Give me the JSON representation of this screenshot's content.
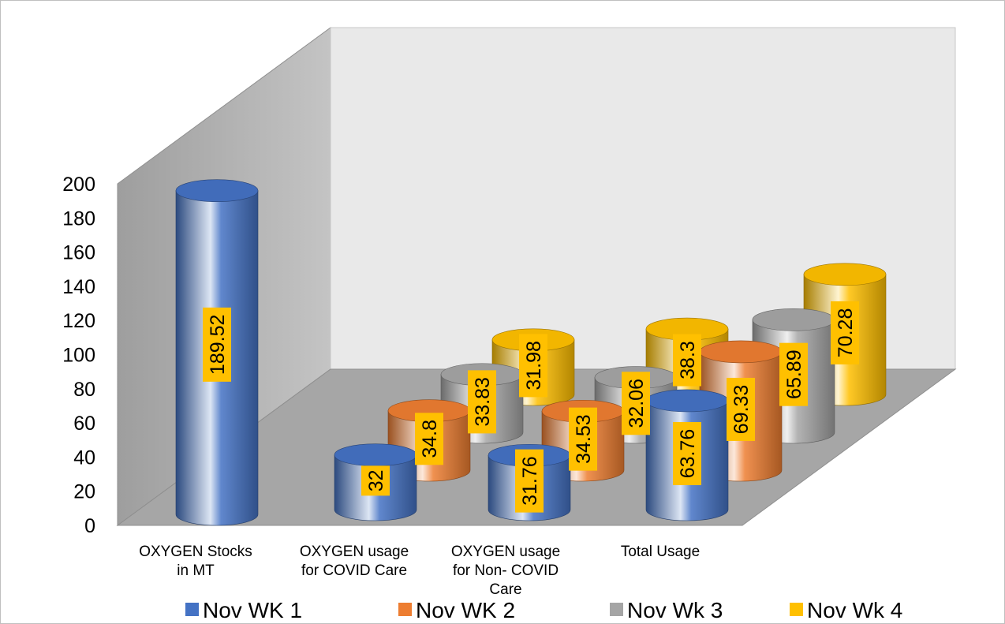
{
  "chart_data": {
    "type": "bar",
    "style": "3d-cylinder",
    "categories": [
      [
        "OXYGEN Stocks",
        "in MT"
      ],
      [
        "OXYGEN usage",
        "for COVID Care"
      ],
      [
        "OXYGEN usage",
        "for Non- COVID",
        "Care"
      ],
      [
        "Total Usage"
      ]
    ],
    "series": [
      {
        "name": "Nov WK 1",
        "color": "#4472C4",
        "values": [
          189.52,
          32,
          31.76,
          63.76
        ]
      },
      {
        "name": "Nov WK 2",
        "color": "#ED7D31",
        "values": [
          null,
          34.8,
          34.53,
          69.33
        ]
      },
      {
        "name": "Nov Wk 3",
        "color": "#A5A5A5",
        "values": [
          null,
          33.83,
          32.06,
          65.89
        ]
      },
      {
        "name": "Nov Wk 4",
        "color": "#FFC000",
        "values": [
          null,
          31.98,
          38.3,
          70.28
        ]
      }
    ],
    "data_labels": [
      [
        "189.52",
        "32",
        "31.76",
        "63.76"
      ],
      [
        null,
        "34.8",
        "34.53",
        "69.33"
      ],
      [
        null,
        "33.83",
        "32.06",
        "65.89"
      ],
      [
        null,
        "31.98",
        "38.3",
        "70.28"
      ]
    ],
    "y_ticks": [
      "0",
      "20",
      "40",
      "60",
      "80",
      "100",
      "120",
      "140",
      "160",
      "180",
      "200"
    ],
    "ylim": [
      0,
      200
    ],
    "grid": false,
    "legend_position": "bottom",
    "data_label_background": "#FFC000"
  }
}
